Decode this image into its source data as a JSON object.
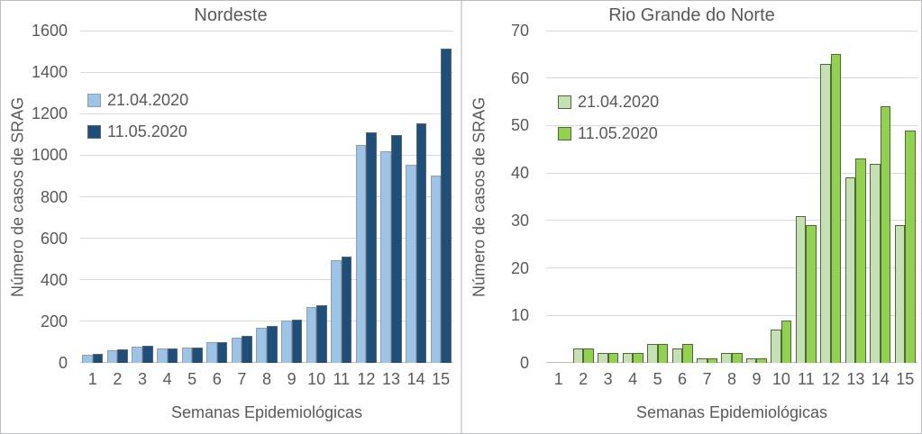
{
  "figure": {
    "description": "Two grouped bar charts comparing SRAG cases by epidemiological week on two report dates"
  },
  "chart_data": [
    {
      "type": "bar",
      "title": "Nordeste",
      "xlabel": "Semanas Epidemiológicas",
      "ylabel": "Número de casos de SRAG",
      "categories": [
        "1",
        "2",
        "3",
        "4",
        "5",
        "6",
        "7",
        "8",
        "9",
        "10",
        "11",
        "12",
        "13",
        "14",
        "15"
      ],
      "series": [
        {
          "name": "21.04.2020",
          "color": "#9DC3E6",
          "border_color": "rgba(128,128,128,0.55)",
          "values": [
            40,
            60,
            80,
            70,
            73,
            98,
            122,
            170,
            202,
            268,
            495,
            1050,
            1018,
            956,
            900
          ]
        },
        {
          "name": "11.05.2020",
          "color": "#1F4E79",
          "border_color": "rgba(128,128,128,0.55)",
          "values": [
            45,
            63,
            83,
            71,
            75,
            100,
            130,
            178,
            208,
            277,
            512,
            1108,
            1098,
            1152,
            1512
          ]
        }
      ],
      "ylim": [
        0,
        1600
      ],
      "ytick_step": 200,
      "yticks": [
        "0",
        "200",
        "400",
        "600",
        "800",
        "1000",
        "1200",
        "1400",
        "1600"
      ],
      "grid": true,
      "legend_position": "upper-left-inside"
    },
    {
      "type": "bar",
      "title": "Rio Grande do Norte",
      "xlabel": "Semanas Epidemiológicas",
      "ylabel": "Número de casos de SRAG",
      "categories": [
        "1",
        "2",
        "3",
        "4",
        "5",
        "6",
        "7",
        "8",
        "9",
        "10",
        "11",
        "12",
        "13",
        "14",
        "15"
      ],
      "series": [
        {
          "name": "21.04.2020",
          "color": "#C5E0B4",
          "border_color": "#4F6B35",
          "values": [
            0,
            3,
            2,
            2,
            4,
            3,
            1,
            2,
            1,
            7,
            31,
            63,
            39,
            42,
            29
          ]
        },
        {
          "name": "11.05.2020",
          "color": "#92D050",
          "border_color": "#4F6B35",
          "values": [
            0,
            3,
            2,
            2,
            4,
            4,
            1,
            2,
            1,
            9,
            29,
            65,
            43,
            54,
            49
          ]
        }
      ],
      "ylim": [
        0,
        70
      ],
      "ytick_step": 10,
      "yticks": [
        "0",
        "10",
        "20",
        "30",
        "40",
        "50",
        "60",
        "70"
      ],
      "grid": true,
      "legend_position": "upper-left-inside"
    }
  ],
  "colors": {
    "text": "#595959",
    "gridline": "#D9D9D9",
    "axis_line": "#BFBFBF",
    "background": "#FFFFFF",
    "panel_border": "#B9BEC6"
  }
}
